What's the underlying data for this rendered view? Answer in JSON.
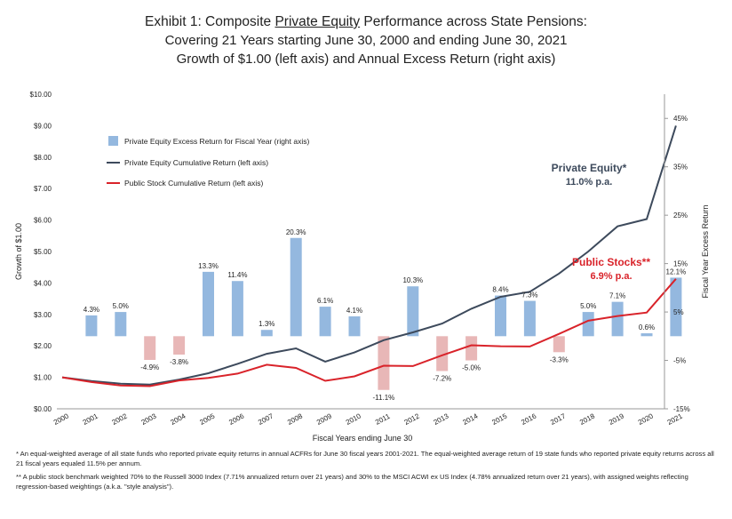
{
  "title": {
    "prefix": "Exhibit 1:  Composite ",
    "underlined": "Private Equity",
    "suffix": " Performance across State Pensions:",
    "line2": "Covering 21 Years starting June 30, 2000 and ending June 30, 2021",
    "line3": "Growth of $1.00 (left axis) and Annual Excess Return (right axis)"
  },
  "footnotes": {
    "note1": "*  An equal-weighted average of all state funds who reported  private equity returns in annual ACFRs for June 30 fiscal years 2001-2021.  The equal-weighted average return of 19 state funds who reported private equity returns across all 21 fiscal years equaled 11.5% per annum.",
    "note2": "** A public stock benchmark weighted 70% to the Russell 3000 Index (7.71% annualized return over 21 years) and 30% to the MSCI ACWI ex US Index (4.78% annualized return over 21 years), with assigned weights reflecting regression-based weightings (a.k.a. \"style analysis\")."
  },
  "chart_data": {
    "type": "bar+line",
    "x": [
      "2000",
      "2001",
      "2002",
      "2003",
      "2004",
      "2005",
      "2006",
      "2007",
      "2008",
      "2009",
      "2010",
      "2011",
      "2012",
      "2013",
      "2014",
      "2015",
      "2016",
      "2017",
      "2018",
      "2019",
      "2020",
      "2021"
    ],
    "xlabel": "Fiscal Years ending June 30",
    "ylabel_left": "Growth of $1.00",
    "ylabel_right": "Fiscal Year Excess Return",
    "ylim_left": [
      0,
      10
    ],
    "ylim_right": [
      -15,
      50
    ],
    "left_ticks": [
      "$0.00",
      "$1.00",
      "$2.00",
      "$3.00",
      "$4.00",
      "$5.00",
      "$6.00",
      "$7.00",
      "$8.00",
      "$9.00",
      "$10.00"
    ],
    "right_ticks": [
      "-15%",
      "-5%",
      "5%",
      "15%",
      "25%",
      "35%",
      "45%"
    ],
    "grid": false,
    "legend_position": "top-left",
    "legend": {
      "bars": "Private Equity Excess Return for Fiscal Year (right axis)",
      "pe_line": "Private Equity Cumulative Return (left axis)",
      "ps_line": "Public Stock Cumulative Return (left axis)"
    },
    "colors": {
      "positive_bar": "#94b8df",
      "negative_bar": "#e8b7b7",
      "pe_line": "#3d4a5c",
      "ps_line": "#d9232a"
    },
    "excess_return": {
      "x": [
        "2001",
        "2002",
        "2003",
        "2004",
        "2005",
        "2006",
        "2007",
        "2008",
        "2009",
        "2010",
        "2011",
        "2012",
        "2013",
        "2014",
        "2015",
        "2016",
        "2017",
        "2018",
        "2019",
        "2020",
        "2021"
      ],
      "values": [
        4.3,
        5.0,
        -4.9,
        -3.8,
        13.3,
        11.4,
        1.3,
        20.3,
        6.1,
        4.1,
        -11.1,
        10.3,
        -7.2,
        -5.0,
        8.4,
        7.3,
        -3.3,
        5.0,
        7.1,
        0.6,
        12.1
      ],
      "labels": [
        "4.3%",
        "5.0%",
        "-4.9%",
        "-3.8%",
        "13.3%",
        "11.4%",
        "1.3%",
        "20.3%",
        "6.1%",
        "4.1%",
        "-11.1%",
        "10.3%",
        "-7.2%",
        "-5.0%",
        "8.4%",
        "7.3%",
        "-3.3%",
        "5.0%",
        "7.1%",
        "0.6%",
        "12.1%"
      ]
    },
    "series": [
      {
        "name": "Private Equity Cumulative Return (left axis)",
        "values": [
          1.0,
          0.88,
          0.8,
          0.77,
          0.93,
          1.13,
          1.43,
          1.75,
          1.92,
          1.5,
          1.79,
          2.18,
          2.43,
          2.71,
          3.18,
          3.56,
          3.72,
          4.3,
          5.0,
          5.8,
          6.03,
          9.0
        ]
      },
      {
        "name": "Public Stock Cumulative Return (left axis)",
        "values": [
          1.0,
          0.85,
          0.74,
          0.72,
          0.9,
          0.98,
          1.12,
          1.4,
          1.3,
          0.89,
          1.03,
          1.37,
          1.36,
          1.7,
          2.02,
          1.99,
          1.98,
          2.38,
          2.8,
          2.95,
          3.06,
          4.13
        ]
      }
    ],
    "annotations": {
      "pe_name": "Private Equity*",
      "pe_rate": "11.0% p.a.",
      "ps_name": "Public Stocks**",
      "ps_rate": "6.9% p.a."
    }
  }
}
